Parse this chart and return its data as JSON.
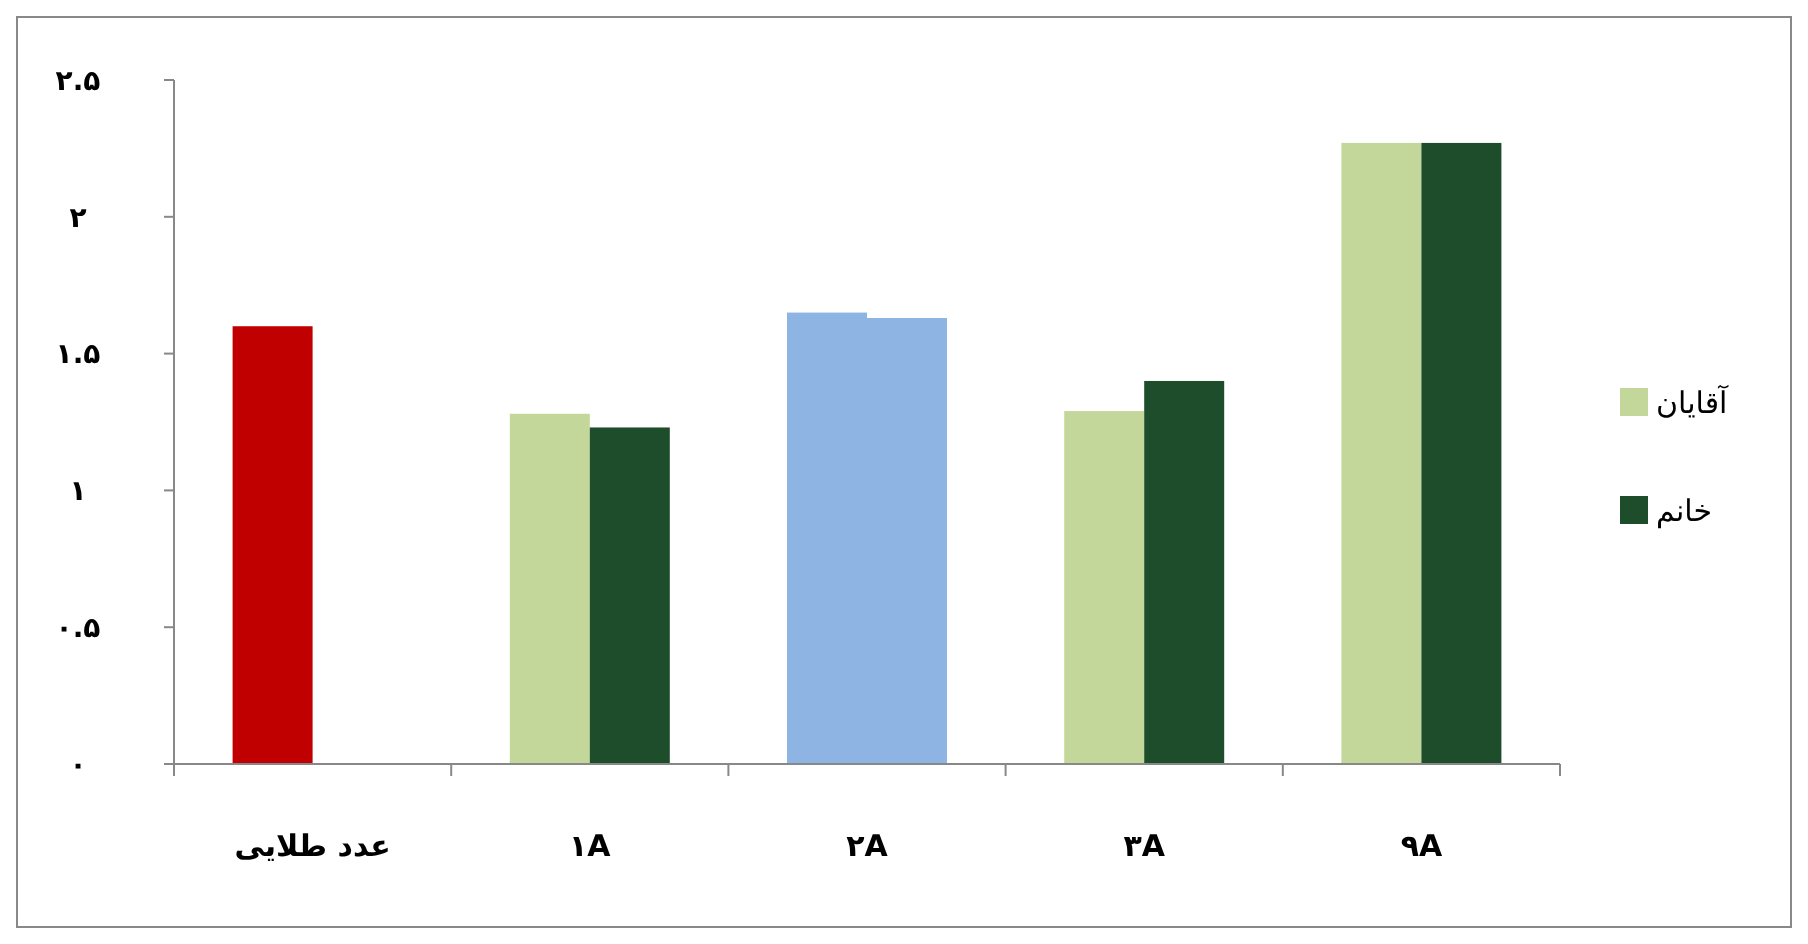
{
  "chart_data": {
    "type": "bar",
    "categories": [
      "عدد طلایی",
      "۱A",
      "۲A",
      "۳A",
      "۹A"
    ],
    "series": [
      {
        "name": "آقایان",
        "color": "#c4d79b",
        "colors": [
          "#c00000",
          "#c4d79b",
          "#8eb4e3",
          "#c4d79b",
          "#c4d79b"
        ],
        "values": [
          1.6,
          1.28,
          1.65,
          1.29,
          2.27
        ]
      },
      {
        "name": "خانم",
        "color": "#1e4d2b",
        "colors": [
          null,
          "#1e4d2b",
          "#8eb4e3",
          "#1e4d2b",
          "#1e4d2b"
        ],
        "values": [
          null,
          1.23,
          1.63,
          1.4,
          2.27
        ]
      }
    ],
    "ylim": [
      0,
      2.5
    ],
    "yticks": [
      {
        "value": 0,
        "label": "۰"
      },
      {
        "value": 0.5,
        "label": "۰.۵"
      },
      {
        "value": 1,
        "label": "۱"
      },
      {
        "value": 1.5,
        "label": "۱.۵"
      },
      {
        "value": 2,
        "label": "۲"
      },
      {
        "value": 2.5,
        "label": "۲.۵"
      }
    ],
    "grid": false,
    "legend": "right"
  }
}
